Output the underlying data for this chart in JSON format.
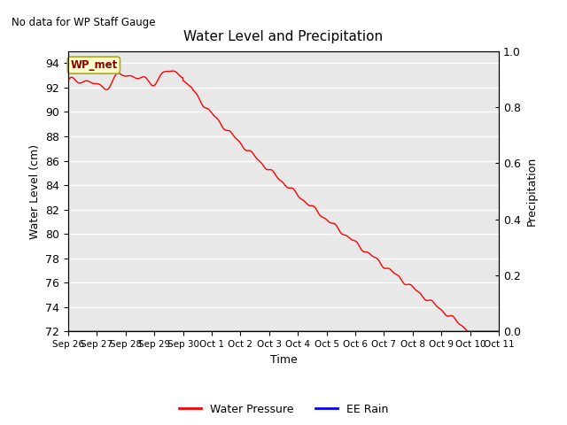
{
  "title": "Water Level and Precipitation",
  "top_left_text": "No data for WP Staff Gauge",
  "xlabel": "Time",
  "ylabel_left": "Water Level (cm)",
  "ylabel_right": "Precipitation",
  "legend_labels": [
    "Water Pressure",
    "EE Rain"
  ],
  "box_label": "WP_met",
  "box_bg": "#ffffcc",
  "box_border": "#aaa820",
  "ylim_left": [
    72,
    95
  ],
  "ylim_right": [
    0.0,
    1.0
  ],
  "yticks_left": [
    72,
    74,
    76,
    78,
    80,
    82,
    84,
    86,
    88,
    90,
    92,
    94
  ],
  "yticks_right": [
    0.0,
    0.2,
    0.4,
    0.6,
    0.8,
    1.0
  ],
  "xtick_labels": [
    "Sep 26",
    "Sep 27",
    "Sep 28",
    "Sep 29",
    "Sep 30",
    "Oct 1",
    "Oct 2",
    "Oct 3",
    "Oct 4",
    "Oct 5",
    "Oct 6",
    "Oct 7",
    "Oct 8",
    "Oct 9",
    "Oct 10",
    "Oct 11"
  ],
  "background_color": "#e8e8e8",
  "line_color": "red",
  "rain_color": "blue",
  "figsize": [
    6.4,
    4.8
  ],
  "dpi": 100
}
